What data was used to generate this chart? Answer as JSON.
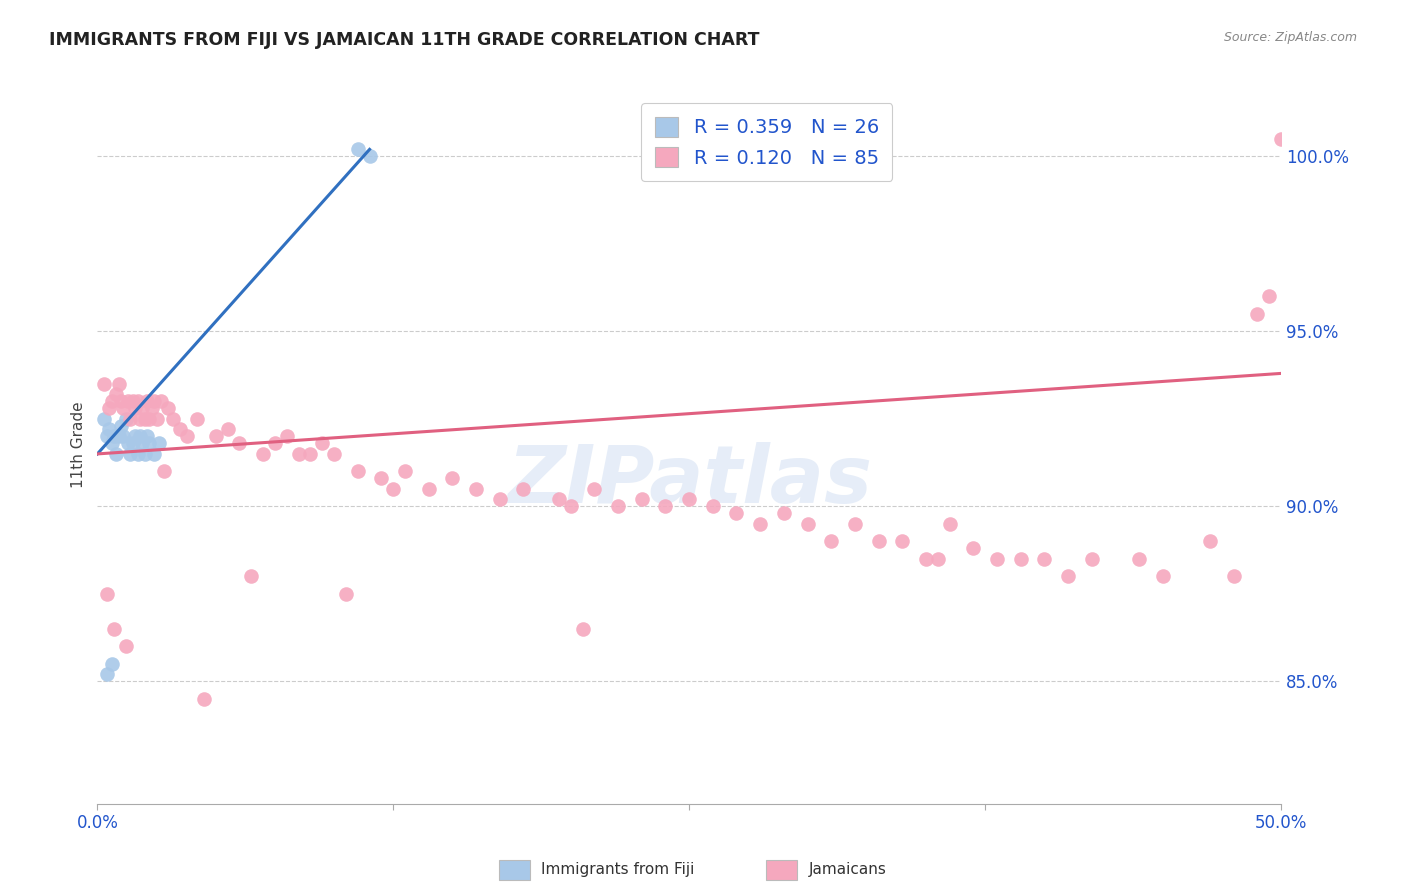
{
  "title": "IMMIGRANTS FROM FIJI VS JAMAICAN 11TH GRADE CORRELATION CHART",
  "source": "Source: ZipAtlas.com",
  "ylabel": "11th Grade",
  "xmin": 0.0,
  "xmax": 50.0,
  "ymin": 81.5,
  "ymax": 102.0,
  "yticks": [
    85.0,
    90.0,
    95.0,
    100.0
  ],
  "ytick_labels": [
    "85.0%",
    "90.0%",
    "95.0%",
    "100.0%"
  ],
  "fiji_R": 0.359,
  "fiji_N": 26,
  "jamaican_R": 0.12,
  "jamaican_N": 85,
  "fiji_color": "#a8c8e8",
  "jamaican_color": "#f5a8be",
  "fiji_line_color": "#3070c0",
  "jamaican_line_color": "#e06080",
  "watermark": "ZIPatlas",
  "fiji_x": [
    0.3,
    0.4,
    0.5,
    0.6,
    0.7,
    0.8,
    0.9,
    1.0,
    1.1,
    1.2,
    1.3,
    1.4,
    1.5,
    1.6,
    1.7,
    1.8,
    1.9,
    2.0,
    2.1,
    2.2,
    2.4,
    2.6,
    0.4,
    0.6,
    11.0,
    11.5
  ],
  "fiji_y": [
    92.5,
    92.0,
    92.2,
    91.8,
    92.0,
    91.5,
    92.0,
    92.3,
    92.0,
    92.5,
    91.8,
    91.5,
    91.8,
    92.0,
    91.5,
    92.0,
    91.8,
    91.5,
    92.0,
    91.8,
    91.5,
    91.8,
    85.2,
    85.5,
    100.2,
    100.0
  ],
  "jamaican_x": [
    0.3,
    0.5,
    0.6,
    0.8,
    0.9,
    1.0,
    1.1,
    1.3,
    1.4,
    1.5,
    1.6,
    1.7,
    1.8,
    1.9,
    2.0,
    2.1,
    2.2,
    2.3,
    2.4,
    2.5,
    2.7,
    3.0,
    3.2,
    3.5,
    3.8,
    4.2,
    5.0,
    5.5,
    6.0,
    7.0,
    7.5,
    8.0,
    8.5,
    9.0,
    9.5,
    10.0,
    11.0,
    12.0,
    12.5,
    13.0,
    14.0,
    15.0,
    16.0,
    17.0,
    18.0,
    19.5,
    20.0,
    21.0,
    22.0,
    23.0,
    24.0,
    25.0,
    26.0,
    27.0,
    28.0,
    29.0,
    30.0,
    31.0,
    32.0,
    33.0,
    34.0,
    35.0,
    36.0,
    37.0,
    38.0,
    39.0,
    40.0,
    41.0,
    42.0,
    44.0,
    45.0,
    47.0,
    48.0,
    49.0,
    49.5,
    50.0,
    0.4,
    0.7,
    1.2,
    2.8,
    4.5,
    6.5,
    10.5,
    20.5,
    35.5
  ],
  "jamaican_y": [
    93.5,
    92.8,
    93.0,
    93.2,
    93.5,
    93.0,
    92.8,
    93.0,
    92.5,
    93.0,
    92.8,
    93.0,
    92.5,
    92.8,
    92.5,
    93.0,
    92.5,
    92.8,
    93.0,
    92.5,
    93.0,
    92.8,
    92.5,
    92.2,
    92.0,
    92.5,
    92.0,
    92.2,
    91.8,
    91.5,
    91.8,
    92.0,
    91.5,
    91.5,
    91.8,
    91.5,
    91.0,
    90.8,
    90.5,
    91.0,
    90.5,
    90.8,
    90.5,
    90.2,
    90.5,
    90.2,
    90.0,
    90.5,
    90.0,
    90.2,
    90.0,
    90.2,
    90.0,
    89.8,
    89.5,
    89.8,
    89.5,
    89.0,
    89.5,
    89.0,
    89.0,
    88.5,
    89.5,
    88.8,
    88.5,
    88.5,
    88.5,
    88.0,
    88.5,
    88.5,
    88.0,
    89.0,
    88.0,
    95.5,
    96.0,
    100.5,
    87.5,
    86.5,
    86.0,
    91.0,
    84.5,
    88.0,
    87.5,
    86.5,
    88.5
  ],
  "legend_txt_color": "#2255cc",
  "tick_color": "#2255cc",
  "grid_color": "#cccccc",
  "bottom_legend": [
    "Immigrants from Fiji",
    "Jamaicans"
  ]
}
